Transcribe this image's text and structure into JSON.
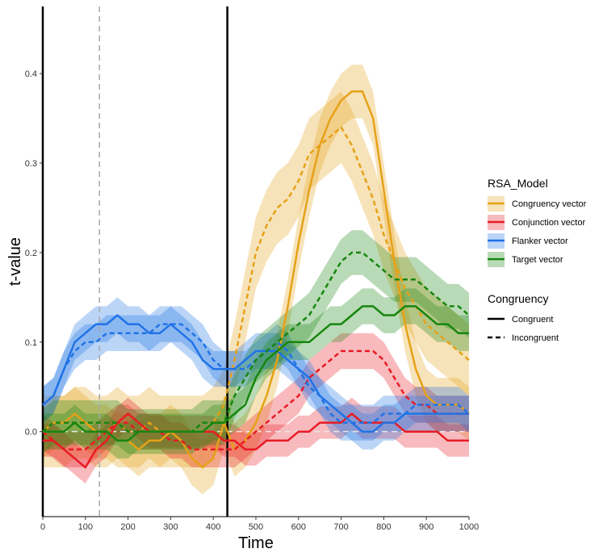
{
  "chart_data": {
    "type": "line",
    "xlabel": "Time",
    "ylabel": "t-value",
    "xlim": [
      0,
      1000
    ],
    "ylim": [
      -0.095,
      0.475
    ],
    "x_ticks": [
      0,
      100,
      200,
      300,
      400,
      500,
      600,
      700,
      800,
      900,
      1000
    ],
    "y_ticks": [
      0.0,
      0.1,
      0.2,
      0.3,
      0.4
    ],
    "y_tick_labels": [
      "0.0",
      "0.1",
      "0.2",
      "0.3",
      "0.4"
    ],
    "grid": false,
    "legend_position": "right",
    "reference_lines": {
      "horizontal_dashed": 0,
      "vertical_dashed": 133,
      "vertical_solid": [
        0,
        433
      ]
    },
    "legend": {
      "model_title": "RSA_Model",
      "model_entries": [
        "Congruency vector",
        "Conjunction vector",
        "Flanker vector",
        "Target vector"
      ],
      "congruency_title": "Congruency",
      "congruency_entries": [
        "Congruent",
        "Incongruent"
      ]
    },
    "colors": {
      "Congruency vector": "#E6A117",
      "Conjunction vector": "#E81B23",
      "Flanker vector": "#1F73E6",
      "Target vector": "#16860F"
    },
    "x": [
      0,
      25,
      50,
      75,
      100,
      125,
      150,
      175,
      200,
      225,
      250,
      275,
      300,
      325,
      350,
      375,
      400,
      425,
      450,
      475,
      500,
      525,
      550,
      575,
      600,
      625,
      650,
      675,
      700,
      725,
      750,
      775,
      800,
      825,
      850,
      875,
      900,
      925,
      950,
      975,
      1000
    ],
    "series": [
      {
        "name": "Congruency vector",
        "condition": "Congruent",
        "values": [
          0.0,
          0.01,
          0.01,
          0.02,
          0.01,
          0.0,
          0.0,
          -0.01,
          -0.01,
          -0.02,
          -0.01,
          -0.01,
          0.0,
          -0.01,
          -0.03,
          -0.04,
          -0.03,
          0.01,
          -0.02,
          -0.01,
          0.01,
          0.04,
          0.08,
          0.14,
          0.21,
          0.27,
          0.32,
          0.35,
          0.37,
          0.38,
          0.38,
          0.35,
          0.27,
          0.19,
          0.12,
          0.07,
          0.04,
          0.03,
          0.03,
          0.03,
          0.02
        ],
        "band": 0.03
      },
      {
        "name": "Congruency vector",
        "condition": "Incongruent",
        "values": [
          0.0,
          0.0,
          0.0,
          0.01,
          0.01,
          0.0,
          0.0,
          0.01,
          0.0,
          0.0,
          0.01,
          0.0,
          0.0,
          0.0,
          0.0,
          0.0,
          0.01,
          0.03,
          0.08,
          0.14,
          0.2,
          0.23,
          0.25,
          0.26,
          0.28,
          0.31,
          0.32,
          0.33,
          0.34,
          0.32,
          0.29,
          0.26,
          0.22,
          0.19,
          0.16,
          0.14,
          0.12,
          0.11,
          0.1,
          0.09,
          0.08
        ],
        "band": 0.04
      },
      {
        "name": "Conjunction vector",
        "condition": "Congruent",
        "values": [
          -0.01,
          -0.01,
          -0.02,
          -0.03,
          -0.04,
          -0.02,
          -0.01,
          0.01,
          0.02,
          0.01,
          0.0,
          0.0,
          0.0,
          0.0,
          0.0,
          0.0,
          0.0,
          -0.01,
          -0.01,
          -0.02,
          -0.02,
          -0.01,
          -0.01,
          -0.01,
          0.0,
          0.0,
          0.01,
          0.01,
          0.01,
          0.02,
          0.01,
          0.01,
          0.01,
          0.01,
          0.0,
          0.0,
          0.0,
          0.0,
          -0.01,
          -0.01,
          -0.01
        ],
        "band": 0.018
      },
      {
        "name": "Conjunction vector",
        "condition": "Incongruent",
        "values": [
          0.0,
          -0.01,
          -0.02,
          -0.02,
          -0.02,
          -0.01,
          0.0,
          0.01,
          0.01,
          0.0,
          0.0,
          0.0,
          -0.01,
          -0.01,
          -0.02,
          -0.02,
          -0.02,
          -0.02,
          -0.02,
          -0.01,
          0.0,
          0.01,
          0.02,
          0.03,
          0.04,
          0.06,
          0.07,
          0.08,
          0.09,
          0.09,
          0.09,
          0.09,
          0.08,
          0.06,
          0.04,
          0.03,
          0.03,
          0.02,
          0.02,
          0.02,
          0.02
        ],
        "band": 0.02
      },
      {
        "name": "Flanker vector",
        "condition": "Congruent",
        "values": [
          0.03,
          0.04,
          0.07,
          0.1,
          0.11,
          0.12,
          0.12,
          0.13,
          0.12,
          0.12,
          0.11,
          0.11,
          0.12,
          0.11,
          0.1,
          0.08,
          0.07,
          0.07,
          0.07,
          0.08,
          0.09,
          0.09,
          0.09,
          0.08,
          0.07,
          0.06,
          0.04,
          0.03,
          0.02,
          0.01,
          0.0,
          0.0,
          0.01,
          0.01,
          0.02,
          0.02,
          0.02,
          0.02,
          0.02,
          0.02,
          0.02
        ],
        "band": 0.02
      },
      {
        "name": "Flanker vector",
        "condition": "Incongruent",
        "values": [
          0.03,
          0.04,
          0.07,
          0.09,
          0.1,
          0.1,
          0.11,
          0.11,
          0.11,
          0.11,
          0.11,
          0.12,
          0.12,
          0.12,
          0.11,
          0.1,
          0.08,
          0.07,
          0.07,
          0.07,
          0.08,
          0.09,
          0.1,
          0.09,
          0.07,
          0.05,
          0.04,
          0.02,
          0.01,
          0.01,
          0.01,
          0.01,
          0.02,
          0.02,
          0.02,
          0.03,
          0.03,
          0.03,
          0.03,
          0.03,
          0.02
        ],
        "band": 0.02
      },
      {
        "name": "Target vector",
        "condition": "Congruent",
        "values": [
          0.0,
          0.0,
          0.0,
          0.01,
          0.0,
          0.0,
          0.0,
          -0.01,
          -0.01,
          0.0,
          0.0,
          0.0,
          0.0,
          0.0,
          0.0,
          0.0,
          0.01,
          0.01,
          0.02,
          0.03,
          0.06,
          0.08,
          0.09,
          0.1,
          0.1,
          0.1,
          0.11,
          0.12,
          0.12,
          0.13,
          0.14,
          0.14,
          0.13,
          0.13,
          0.14,
          0.14,
          0.13,
          0.12,
          0.12,
          0.11,
          0.11
        ],
        "band": 0.02
      },
      {
        "name": "Target vector",
        "condition": "Incongruent",
        "values": [
          0.0,
          0.01,
          0.01,
          0.01,
          0.01,
          0.01,
          0.01,
          0.01,
          0.0,
          0.0,
          0.0,
          0.0,
          0.0,
          0.0,
          0.0,
          0.01,
          0.01,
          0.01,
          0.04,
          0.06,
          0.08,
          0.09,
          0.1,
          0.11,
          0.12,
          0.13,
          0.15,
          0.17,
          0.19,
          0.2,
          0.2,
          0.19,
          0.18,
          0.17,
          0.17,
          0.17,
          0.16,
          0.15,
          0.14,
          0.14,
          0.13
        ],
        "band": 0.025
      }
    ]
  }
}
